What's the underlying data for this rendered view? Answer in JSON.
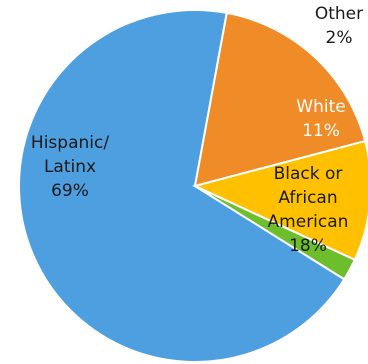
{
  "chart_data": {
    "type": "pie",
    "title": "",
    "slices": [
      {
        "label": "Hispanic/ Latinx",
        "lines": [
          "Hispanic/",
          "Latinx"
        ],
        "value": 69,
        "value_label": "69%",
        "color": "#4E9FE0",
        "text_color": "#1a1a1a"
      },
      {
        "label": "Black or African American",
        "lines": [
          "Black or",
          "African",
          "American"
        ],
        "value": 18,
        "value_label": "18%",
        "color": "#F08C28",
        "text_color": "#1a1a1a"
      },
      {
        "label": "White",
        "lines": [
          "White"
        ],
        "value": 11,
        "value_label": "11%",
        "color": "#FFC000",
        "text_color": "#ffffff"
      },
      {
        "label": "Other",
        "lines": [
          "Other"
        ],
        "value": 2,
        "value_label": "2%",
        "color": "#6DBE2A",
        "text_color": "#1a1a1a"
      }
    ]
  }
}
